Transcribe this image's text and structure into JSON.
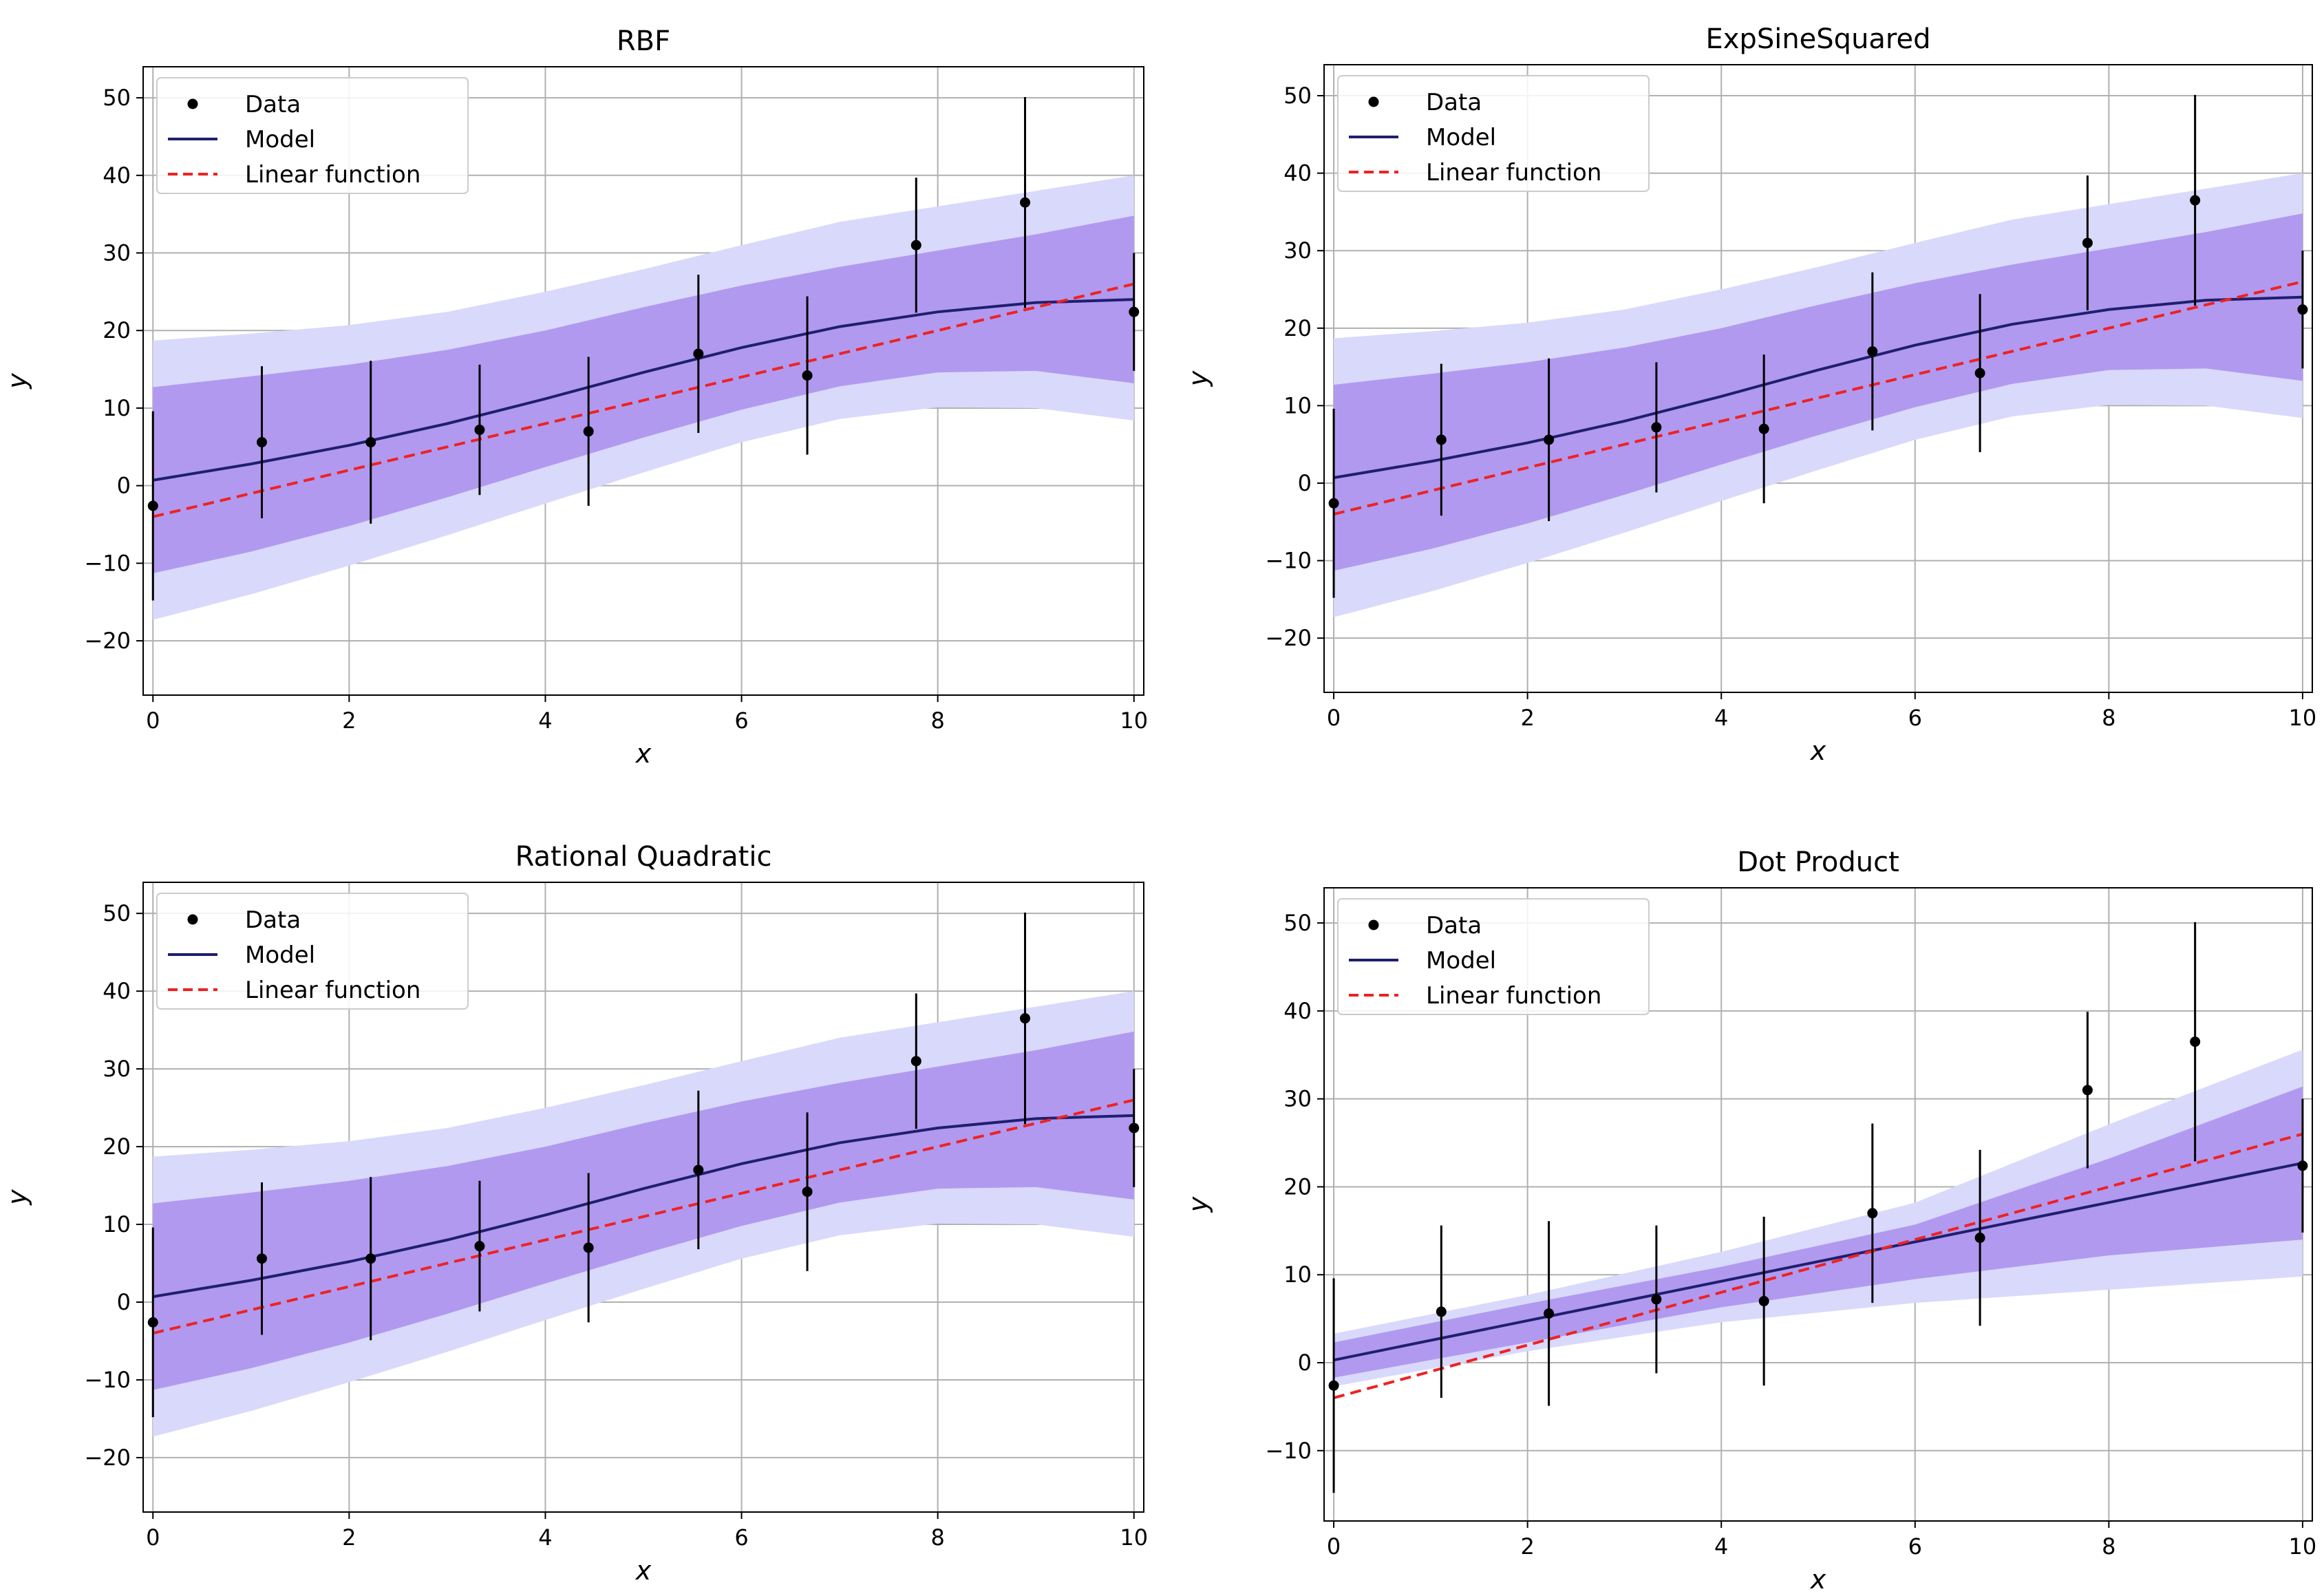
{
  "chart_data": [
    {
      "type": "line",
      "title": "RBF",
      "xlabel": "x",
      "ylabel": "y",
      "xlim": [
        -0.1,
        10.1
      ],
      "ylim": [
        -27,
        54
      ],
      "xticks": [
        0,
        2,
        4,
        6,
        8,
        10
      ],
      "yticks": [
        -20,
        -10,
        0,
        10,
        20,
        30,
        40,
        50
      ],
      "grid": true,
      "legend": {
        "placement": "upper-left",
        "entries": [
          "Data",
          "Model",
          "Linear function"
        ]
      },
      "data_points": {
        "name": "Data",
        "x": [
          0,
          1.11,
          2.22,
          3.33,
          4.44,
          5.56,
          6.67,
          7.78,
          8.89,
          10
        ],
        "y": [
          -2.6,
          5.6,
          5.6,
          7.2,
          7.0,
          17.0,
          14.2,
          31.0,
          36.5,
          22.4
        ],
        "yerr": [
          12.2,
          9.8,
          10.5,
          8.4,
          9.6,
          10.2,
          10.2,
          8.7,
          13.6,
          7.6
        ]
      },
      "model": {
        "name": "Model",
        "x": [
          0,
          1,
          2,
          3,
          4,
          5,
          6,
          7,
          8,
          9,
          10
        ],
        "y": [
          0.7,
          2.8,
          5.2,
          8.0,
          11.2,
          14.6,
          17.8,
          20.5,
          22.4,
          23.6,
          24.0
        ]
      },
      "linear": {
        "name": "Linear function",
        "x": [
          0,
          10
        ],
        "y": [
          -4,
          26
        ]
      },
      "band_inner": {
        "x": [
          0,
          1,
          2,
          3,
          4,
          5,
          6,
          7,
          8,
          9,
          10
        ],
        "lower": [
          -11.3,
          -8.5,
          -5.2,
          -1.5,
          2.4,
          6.2,
          9.8,
          12.8,
          14.6,
          14.8,
          13.2
        ],
        "upper": [
          12.7,
          14.1,
          15.6,
          17.5,
          20.0,
          23.0,
          25.8,
          28.2,
          30.3,
          32.4,
          34.8
        ]
      },
      "band_outer": {
        "x": [
          0,
          1,
          2,
          3,
          4,
          5,
          6,
          7,
          8,
          9,
          10
        ],
        "lower": [
          -17.3,
          -14.0,
          -10.3,
          -6.4,
          -2.3,
          1.7,
          5.6,
          8.6,
          10.1,
          10.0,
          8.4
        ],
        "upper": [
          18.7,
          19.6,
          20.7,
          22.4,
          25.0,
          27.9,
          31.0,
          34.0,
          36.0,
          38.0,
          40.0
        ]
      }
    },
    {
      "type": "line",
      "title": "ExpSineSquared",
      "xlabel": "x",
      "ylabel": "y",
      "xlim": [
        -0.1,
        10.1
      ],
      "ylim": [
        -27,
        54
      ],
      "xticks": [
        0,
        2,
        4,
        6,
        8,
        10
      ],
      "yticks": [
        -20,
        -10,
        0,
        10,
        20,
        30,
        40,
        50
      ],
      "grid": true,
      "legend": {
        "placement": "upper-left",
        "entries": [
          "Data",
          "Model",
          "Linear function"
        ]
      },
      "data_points": {
        "name": "Data",
        "x": [
          0,
          1.11,
          2.22,
          3.33,
          4.44,
          5.56,
          6.67,
          7.78,
          8.89,
          10
        ],
        "y": [
          -2.6,
          5.6,
          5.6,
          7.2,
          7.0,
          17.0,
          14.2,
          31.0,
          36.5,
          22.4
        ],
        "yerr": [
          12.2,
          9.8,
          10.5,
          8.4,
          9.6,
          10.2,
          10.2,
          8.7,
          13.6,
          7.6
        ]
      },
      "model": {
        "name": "Model",
        "x": [
          0,
          1,
          2,
          3,
          4,
          5,
          6,
          7,
          8,
          9,
          10
        ],
        "y": [
          0.7,
          2.8,
          5.2,
          8.0,
          11.2,
          14.6,
          17.8,
          20.5,
          22.4,
          23.6,
          24.0
        ]
      },
      "linear": {
        "name": "Linear function",
        "x": [
          0,
          10
        ],
        "y": [
          -4,
          26
        ]
      },
      "band_inner": {
        "x": [
          0,
          1,
          2,
          3,
          4,
          5,
          6,
          7,
          8,
          9,
          10
        ],
        "lower": [
          -11.3,
          -8.5,
          -5.2,
          -1.5,
          2.4,
          6.2,
          9.8,
          12.8,
          14.6,
          14.8,
          13.2
        ],
        "upper": [
          12.7,
          14.1,
          15.6,
          17.5,
          20.0,
          23.0,
          25.8,
          28.2,
          30.3,
          32.4,
          34.8
        ]
      },
      "band_outer": {
        "x": [
          0,
          1,
          2,
          3,
          4,
          5,
          6,
          7,
          8,
          9,
          10
        ],
        "lower": [
          -17.3,
          -14.0,
          -10.3,
          -6.4,
          -2.3,
          1.7,
          5.6,
          8.6,
          10.1,
          10.0,
          8.4
        ],
        "upper": [
          18.7,
          19.6,
          20.7,
          22.4,
          25.0,
          27.9,
          31.0,
          34.0,
          36.0,
          38.0,
          40.0
        ]
      }
    },
    {
      "type": "line",
      "title": "Rational Quadratic",
      "xlabel": "x",
      "ylabel": "y",
      "xlim": [
        -0.1,
        10.1
      ],
      "ylim": [
        -27,
        54
      ],
      "xticks": [
        0,
        2,
        4,
        6,
        8,
        10
      ],
      "yticks": [
        -20,
        -10,
        0,
        10,
        20,
        30,
        40,
        50
      ],
      "grid": true,
      "legend": {
        "placement": "upper-left",
        "entries": [
          "Data",
          "Model",
          "Linear function"
        ]
      },
      "data_points": {
        "name": "Data",
        "x": [
          0,
          1.11,
          2.22,
          3.33,
          4.44,
          5.56,
          6.67,
          7.78,
          8.89,
          10
        ],
        "y": [
          -2.6,
          5.6,
          5.6,
          7.2,
          7.0,
          17.0,
          14.2,
          31.0,
          36.5,
          22.4
        ],
        "yerr": [
          12.2,
          9.8,
          10.5,
          8.4,
          9.6,
          10.2,
          10.2,
          8.7,
          13.6,
          7.6
        ]
      },
      "model": {
        "name": "Model",
        "x": [
          0,
          1,
          2,
          3,
          4,
          5,
          6,
          7,
          8,
          9,
          10
        ],
        "y": [
          0.7,
          2.8,
          5.2,
          8.0,
          11.2,
          14.6,
          17.8,
          20.5,
          22.4,
          23.6,
          24.0
        ]
      },
      "linear": {
        "name": "Linear function",
        "x": [
          0,
          10
        ],
        "y": [
          -4,
          26
        ]
      },
      "band_inner": {
        "x": [
          0,
          1,
          2,
          3,
          4,
          5,
          6,
          7,
          8,
          9,
          10
        ],
        "lower": [
          -11.3,
          -8.5,
          -5.2,
          -1.5,
          2.4,
          6.2,
          9.8,
          12.8,
          14.6,
          14.8,
          13.2
        ],
        "upper": [
          12.7,
          14.1,
          15.6,
          17.5,
          20.0,
          23.0,
          25.8,
          28.2,
          30.3,
          32.4,
          34.8
        ]
      },
      "band_outer": {
        "x": [
          0,
          1,
          2,
          3,
          4,
          5,
          6,
          7,
          8,
          9,
          10
        ],
        "lower": [
          -17.3,
          -14.0,
          -10.3,
          -6.4,
          -2.3,
          1.7,
          5.6,
          8.6,
          10.1,
          10.0,
          8.4
        ],
        "upper": [
          18.7,
          19.6,
          20.7,
          22.4,
          25.0,
          27.9,
          31.0,
          34.0,
          36.0,
          38.0,
          40.0
        ]
      }
    },
    {
      "type": "line",
      "title": "Dot Product",
      "xlabel": "x",
      "ylabel": "y",
      "xlim": [
        -0.1,
        10.1
      ],
      "ylim": [
        -18,
        54
      ],
      "xticks": [
        0,
        2,
        4,
        6,
        8,
        10
      ],
      "yticks": [
        -10,
        0,
        10,
        20,
        30,
        40,
        50
      ],
      "grid": true,
      "legend": {
        "placement": "upper-left",
        "entries": [
          "Data",
          "Model",
          "Linear function"
        ]
      },
      "data_points": {
        "name": "Data",
        "x": [
          0,
          1.11,
          2.22,
          3.33,
          4.44,
          5.56,
          6.67,
          7.78,
          8.89,
          10
        ],
        "y": [
          -2.6,
          5.8,
          5.6,
          7.2,
          7.0,
          17.0,
          14.2,
          31.0,
          36.5,
          22.4
        ],
        "yerr": [
          12.2,
          9.8,
          10.5,
          8.4,
          9.6,
          10.2,
          10.0,
          8.9,
          13.6,
          7.6
        ]
      },
      "model": {
        "name": "Model",
        "x": [
          0,
          10
        ],
        "y": [
          0.3,
          22.7
        ]
      },
      "linear": {
        "name": "Linear function",
        "x": [
          0,
          10
        ],
        "y": [
          -4,
          26
        ]
      },
      "band_inner": {
        "x": [
          0,
          2,
          4,
          6,
          8,
          10
        ],
        "lower": [
          -1.7,
          2.3,
          6.3,
          9.5,
          12.2,
          14.0
        ],
        "upper": [
          2.3,
          6.7,
          10.9,
          15.7,
          23.2,
          31.4
        ]
      },
      "band_outer": {
        "x": [
          0,
          2,
          4,
          6,
          8,
          10
        ],
        "lower": [
          -2.7,
          1.3,
          4.6,
          6.8,
          8.3,
          9.8
        ],
        "upper": [
          3.3,
          7.7,
          12.6,
          18.2,
          27.1,
          35.6
        ]
      }
    }
  ]
}
